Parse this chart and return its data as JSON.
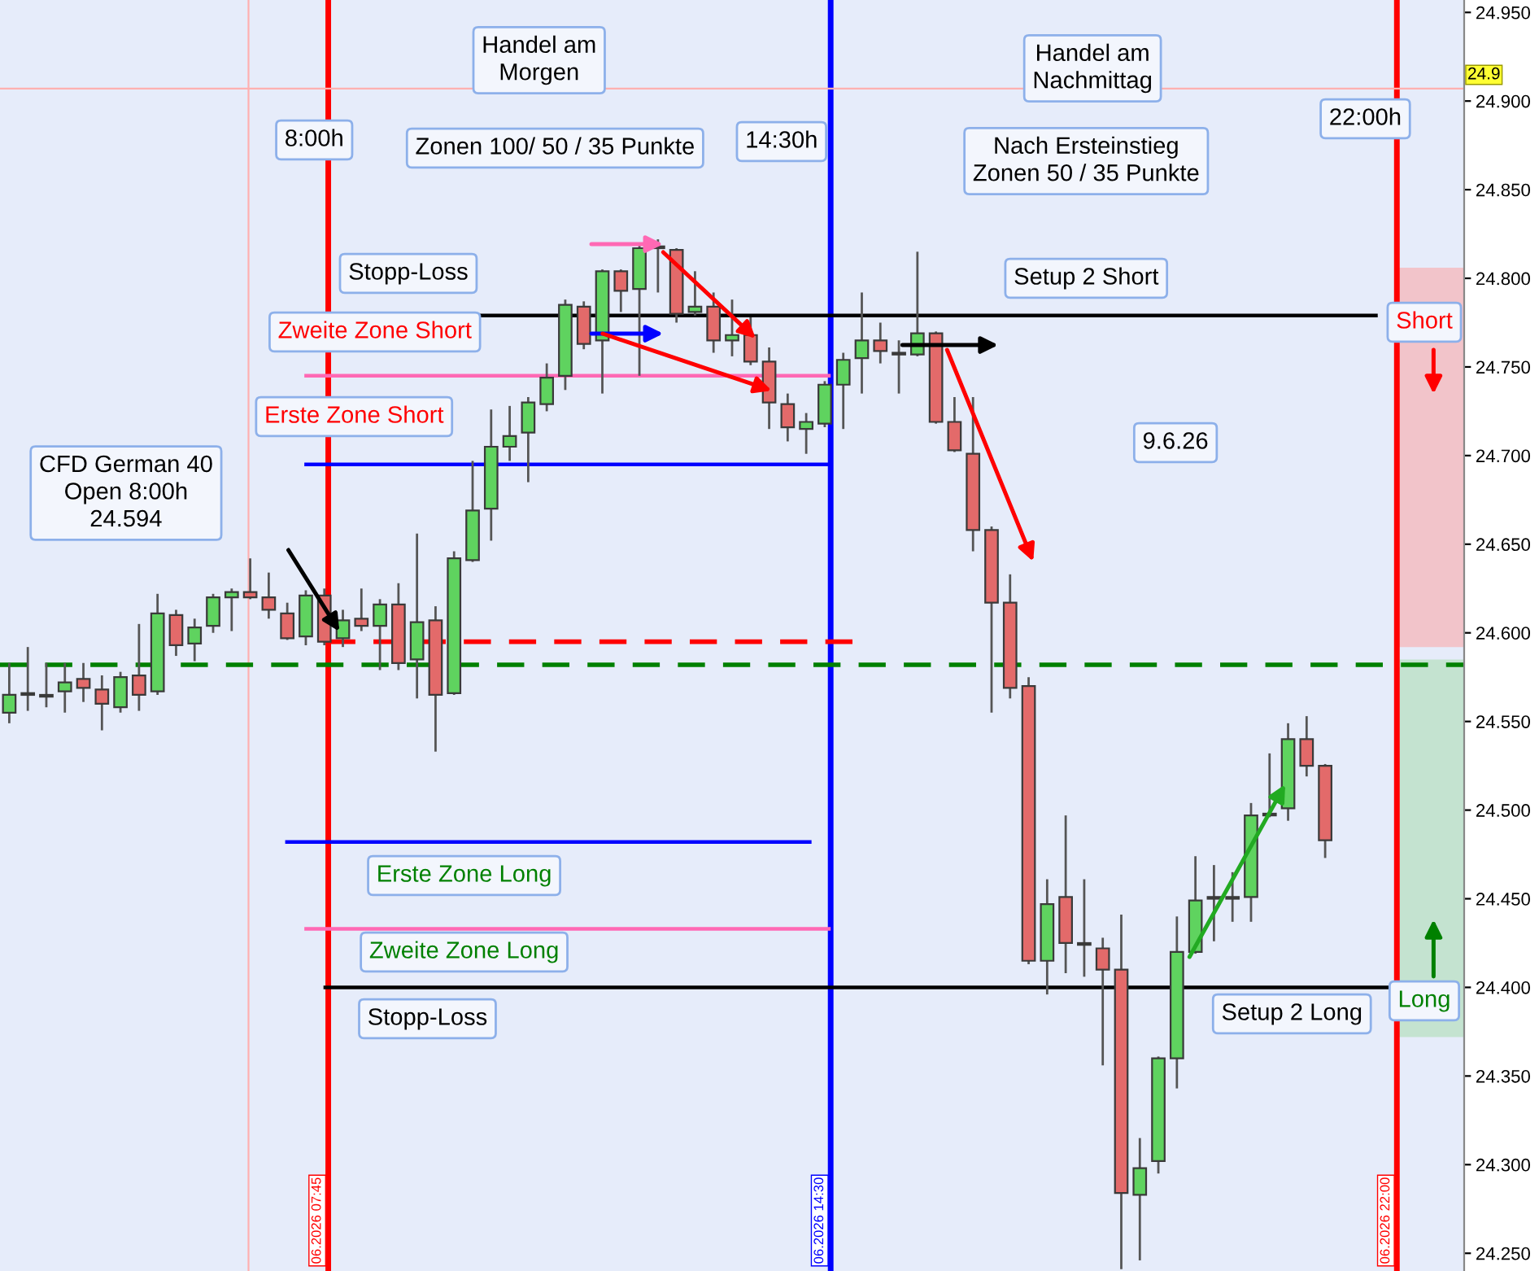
{
  "chart_data": {
    "type": "candlestick",
    "categories": [
      null,
      null,
      null,
      null,
      null,
      null,
      null,
      null,
      null,
      null,
      null,
      null,
      null,
      null,
      null,
      null,
      null,
      null,
      null,
      null,
      null,
      null,
      null,
      null,
      null,
      null,
      null,
      null,
      null,
      null,
      null,
      null,
      null,
      null,
      null,
      null,
      null,
      null,
      null,
      null,
      null,
      null,
      null,
      null,
      null,
      null,
      null,
      null,
      null,
      null,
      null,
      null,
      null,
      null,
      null,
      null,
      null,
      null,
      null,
      null,
      null,
      null,
      null,
      null,
      null,
      null,
      null,
      null,
      null,
      null,
      null,
      null,
      null,
      null,
      null,
      null,
      null,
      null,
      null
    ],
    "ohlc": [
      [
        24.555,
        24.583,
        24.549,
        24.565
      ],
      [
        24.565,
        24.592,
        24.556,
        24.566
      ],
      [
        24.565,
        24.583,
        24.558,
        24.564
      ],
      [
        24.567,
        24.583,
        24.555,
        24.572
      ],
      [
        24.574,
        24.583,
        24.561,
        24.569
      ],
      [
        24.568,
        24.576,
        24.545,
        24.56
      ],
      [
        24.558,
        24.578,
        24.555,
        24.575
      ],
      [
        24.576,
        24.605,
        24.556,
        24.565
      ],
      [
        24.567,
        24.622,
        24.565,
        24.611
      ],
      [
        24.61,
        24.613,
        24.587,
        24.593
      ],
      [
        24.594,
        24.608,
        24.584,
        24.603
      ],
      [
        24.604,
        24.622,
        24.6,
        24.62
      ],
      [
        24.62,
        24.625,
        24.601,
        24.623
      ],
      [
        24.623,
        24.642,
        24.619,
        24.62
      ],
      [
        24.62,
        24.634,
        24.608,
        24.613
      ],
      [
        24.611,
        24.617,
        24.596,
        24.597
      ],
      [
        24.598,
        24.624,
        24.593,
        24.621
      ],
      [
        24.621,
        24.625,
        24.593,
        24.595
      ],
      [
        24.597,
        24.613,
        24.592,
        24.607
      ],
      [
        24.608,
        24.625,
        24.601,
        24.604
      ],
      [
        24.604,
        24.619,
        24.579,
        24.616
      ],
      [
        24.616,
        24.628,
        24.579,
        24.583
      ],
      [
        24.585,
        24.656,
        24.563,
        24.606
      ],
      [
        24.607,
        24.615,
        24.533,
        24.565
      ],
      [
        24.566,
        24.646,
        24.565,
        24.642
      ],
      [
        24.641,
        24.697,
        24.64,
        24.669
      ],
      [
        24.67,
        24.726,
        24.652,
        24.705
      ],
      [
        24.705,
        24.728,
        24.697,
        24.711
      ],
      [
        24.713,
        24.733,
        24.685,
        24.73
      ],
      [
        24.729,
        24.752,
        24.725,
        24.744
      ],
      [
        24.745,
        24.788,
        24.737,
        24.785
      ],
      [
        24.784,
        24.787,
        24.76,
        24.763
      ],
      [
        24.765,
        24.805,
        24.735,
        24.804
      ],
      [
        24.804,
        24.805,
        24.781,
        24.793
      ],
      [
        24.794,
        24.819,
        24.745,
        24.817
      ],
      [
        24.817,
        24.822,
        24.792,
        24.818
      ],
      [
        24.816,
        24.817,
        24.775,
        24.78
      ],
      [
        24.781,
        24.804,
        24.779,
        24.784
      ],
      [
        24.784,
        24.792,
        24.758,
        24.765
      ],
      [
        24.765,
        24.788,
        24.756,
        24.768
      ],
      [
        24.768,
        24.778,
        24.751,
        24.753
      ],
      [
        24.753,
        24.761,
        24.715,
        24.73
      ],
      [
        24.729,
        24.735,
        24.708,
        24.716
      ],
      [
        24.715,
        24.724,
        24.701,
        24.719
      ],
      [
        24.718,
        24.742,
        24.716,
        24.74
      ],
      [
        24.74,
        24.758,
        24.715,
        24.754
      ],
      [
        24.755,
        24.792,
        24.735,
        24.765
      ],
      [
        24.765,
        24.775,
        24.752,
        24.759
      ],
      [
        24.757,
        24.765,
        24.735,
        24.758
      ],
      [
        24.757,
        24.815,
        24.756,
        24.769
      ],
      [
        24.769,
        24.77,
        24.718,
        24.719
      ],
      [
        24.719,
        24.733,
        24.702,
        24.703
      ],
      [
        24.701,
        24.733,
        24.646,
        24.658
      ],
      [
        24.658,
        24.66,
        24.555,
        24.617
      ],
      [
        24.617,
        24.633,
        24.563,
        24.569
      ],
      [
        24.57,
        24.575,
        24.413,
        24.415
      ],
      [
        24.415,
        24.461,
        24.396,
        24.447
      ],
      [
        24.451,
        24.497,
        24.408,
        24.425
      ],
      [
        24.424,
        24.461,
        24.406,
        24.425
      ],
      [
        24.422,
        24.428,
        24.356,
        24.41
      ],
      [
        24.41,
        24.441,
        24.241,
        24.284
      ],
      [
        24.283,
        24.315,
        24.246,
        24.298
      ],
      [
        24.302,
        24.361,
        24.295,
        24.36
      ],
      [
        24.36,
        24.44,
        24.343,
        24.42
      ],
      [
        24.42,
        24.474,
        24.419,
        24.449
      ],
      [
        24.451,
        24.469,
        24.426,
        24.45
      ],
      [
        24.45,
        24.465,
        24.437,
        24.451
      ],
      [
        24.451,
        24.504,
        24.437,
        24.497
      ],
      [
        24.497,
        24.532,
        24.496,
        24.498
      ],
      [
        24.501,
        24.549,
        24.494,
        24.54
      ],
      [
        24.54,
        24.553,
        24.519,
        24.525
      ],
      [
        24.525,
        24.526,
        24.473,
        24.483
      ],
      null,
      null,
      null,
      null,
      null,
      null,
      null
    ],
    "ref_lines": [
      {
        "axis": "x",
        "color": "#ffb0b0",
        "line_style": "solid"
      },
      {
        "axis": "x",
        "label": "06.2026 07:45",
        "color": "#ff0000",
        "line_style": "solid"
      },
      {
        "axis": "x",
        "label": "06.2026 14:30",
        "color": "#0000ff",
        "line_style": "solid"
      },
      {
        "axis": "x",
        "label": "06.2026 22:00",
        "color": "#ff0000",
        "line_style": "solid"
      },
      {
        "axis": "y",
        "value": 24.582,
        "color": "#008000",
        "line_style": "dashed"
      },
      {
        "axis": "y",
        "value": 24.907,
        "color": "#ffb0b0",
        "line_style": "solid"
      },
      {
        "axis": "y",
        "value": 24.779,
        "color": "#000000",
        "line_style": "solid"
      },
      {
        "axis": "y",
        "value": 24.745,
        "color": "#ff69b4",
        "line_style": "solid"
      },
      {
        "axis": "y",
        "value": 24.695,
        "color": "#0000ff",
        "line_style": "solid"
      },
      {
        "axis": "y",
        "value": 24.595,
        "color": "#ff0000",
        "line_style": "dashed"
      },
      {
        "axis": "y",
        "value": 24.482,
        "color": "#0000ff",
        "line_style": "solid"
      },
      {
        "axis": "y",
        "value": 24.433,
        "color": "#ff69b4",
        "line_style": "solid"
      },
      {
        "axis": "y",
        "value": 24.4,
        "color": "#000000",
        "line_style": "solid"
      }
    ],
    "bands": [
      {
        "axis": "y",
        "from": 24.592,
        "to": 24.806,
        "color": "#f2c4ca"
      },
      {
        "axis": "y",
        "from": 24.372,
        "to": 24.585,
        "color": "#c4e3d0"
      }
    ],
    "annotations": [
      "Handel am\nMorgen",
      "8:00h",
      "Zonen 100/ 50 / 35 Punkte",
      "14:30h",
      "Handel am\nNachmittag",
      "Nach Ersteinstieg\nZonen 50 / 35 Punkte",
      "22:00h",
      "Stopp-Loss",
      "Setup 2 Short",
      "Zweite Zone Short",
      "Erste Zone Short",
      "9.6.26",
      "CFD German 40\nOpen 8:00h\n24.594",
      "Short",
      "Erste Zone Long",
      "Zweite Zone Long",
      "Stopp-Loss",
      "Setup 2 Long",
      "Long",
      "24.9"
    ],
    "ylim": [
      24.24,
      24.957
    ],
    "yticks": [
      {
        "value": 24.95,
        "label": "24.950"
      },
      {
        "value": 24.9,
        "label": "24.900"
      },
      {
        "value": 24.85,
        "label": "24.850"
      },
      {
        "value": 24.8,
        "label": "24.800"
      },
      {
        "value": 24.75,
        "label": "24.750"
      },
      {
        "value": 24.7,
        "label": "24.700"
      },
      {
        "value": 24.65,
        "label": "24.650"
      },
      {
        "value": 24.6,
        "label": "24.600"
      },
      {
        "value": 24.55,
        "label": "24.550"
      },
      {
        "value": 24.5,
        "label": "24.500"
      },
      {
        "value": 24.45,
        "label": "24.450"
      },
      {
        "value": 24.4,
        "label": "24.400"
      },
      {
        "value": 24.35,
        "label": "24.350"
      },
      {
        "value": 24.3,
        "label": "24.300"
      },
      {
        "value": 24.25,
        "label": "24.250"
      }
    ],
    "tick_labels": "y",
    "grid": false,
    "legend": false
  }
}
